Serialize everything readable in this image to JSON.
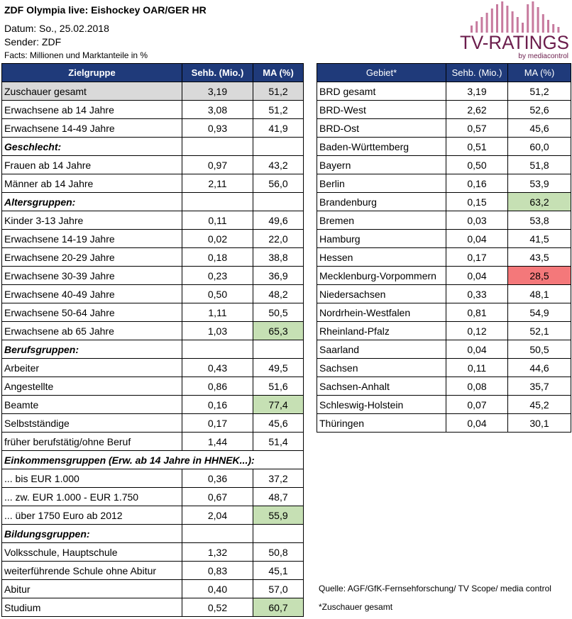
{
  "header": {
    "title": "ZDF Olympia live: Eishockey OAR/GER HR",
    "datum": "Datum: So., 25.02.2018",
    "sender": "Sender: ZDF",
    "facts": "Facts: Millionen und Marktanteile in %"
  },
  "logo": {
    "brand": "TV-RATINGS",
    "sub": "by mediacontrol",
    "color": "#6b1d4c",
    "bar_color": "#c77a9e"
  },
  "colors": {
    "header_bg": "#1f3a7a",
    "total_bg": "#d9d9d9",
    "green": "#c6e0b4",
    "red": "#f4787a"
  },
  "left_table": {
    "columns": [
      "Zielgruppe",
      "Sehb. (Mio.)",
      "MA (%)"
    ],
    "rows": [
      {
        "label": "Zuschauer gesamt",
        "sehb": "3,19",
        "ma": "51,2",
        "kind": "total"
      },
      {
        "label": "Erwachsene ab 14 Jahre",
        "sehb": "3,08",
        "ma": "51,2"
      },
      {
        "label": "Erwachsene 14-49 Jahre",
        "sehb": "0,93",
        "ma": "41,9"
      },
      {
        "label": "Geschlecht:",
        "sehb": "",
        "ma": "",
        "kind": "section"
      },
      {
        "label": "Frauen ab 14 Jahre",
        "sehb": "0,97",
        "ma": "43,2"
      },
      {
        "label": "Männer ab 14 Jahre",
        "sehb": "2,11",
        "ma": "56,0"
      },
      {
        "label": "Altersgruppen:",
        "sehb": "",
        "ma": "",
        "kind": "section"
      },
      {
        "label": "Kinder 3-13 Jahre",
        "sehb": "0,11",
        "ma": "49,6"
      },
      {
        "label": "Erwachsene 14-19 Jahre",
        "sehb": "0,02",
        "ma": "22,0"
      },
      {
        "label": "Erwachsene 20-29 Jahre",
        "sehb": "0,18",
        "ma": "38,8"
      },
      {
        "label": "Erwachsene 30-39 Jahre",
        "sehb": "0,23",
        "ma": "36,9"
      },
      {
        "label": "Erwachsene 40-49 Jahre",
        "sehb": "0,50",
        "ma": "48,2"
      },
      {
        "label": "Erwachsene 50-64 Jahre",
        "sehb": "1,11",
        "ma": "50,5"
      },
      {
        "label": "Erwachsene ab 65 Jahre",
        "sehb": "1,03",
        "ma": "65,3",
        "highlight": "green"
      },
      {
        "label": "Berufsgruppen:",
        "sehb": "",
        "ma": "",
        "kind": "section"
      },
      {
        "label": "Arbeiter",
        "sehb": "0,43",
        "ma": "49,5"
      },
      {
        "label": "Angestellte",
        "sehb": "0,86",
        "ma": "51,6"
      },
      {
        "label": "Beamte",
        "sehb": "0,16",
        "ma": "77,4",
        "highlight": "green"
      },
      {
        "label": "Selbstständige",
        "sehb": "0,17",
        "ma": "45,6"
      },
      {
        "label": "früher berufstätig/ohne Beruf",
        "sehb": "1,44",
        "ma": "51,4"
      },
      {
        "label": "Einkommensgruppen (Erw. ab 14 Jahre in HHNEK...):",
        "sehb": "",
        "ma": "",
        "kind": "section",
        "span": true
      },
      {
        "label": "... bis EUR 1.000",
        "sehb": "0,36",
        "ma": "37,2"
      },
      {
        "label": "... zw. EUR 1.000 - EUR 1.750",
        "sehb": "0,67",
        "ma": "48,7"
      },
      {
        "label": "... über 1750 Euro ab 2012",
        "sehb": "2,04",
        "ma": "55,9",
        "highlight": "green"
      },
      {
        "label": "Bildungsgruppen:",
        "sehb": "",
        "ma": "",
        "kind": "section"
      },
      {
        "label": "Volksschule, Hauptschule",
        "sehb": "1,32",
        "ma": "50,8"
      },
      {
        "label": "weiterführende  Schule ohne Abitur",
        "sehb": "0,83",
        "ma": "45,1"
      },
      {
        "label": "Abitur",
        "sehb": "0,40",
        "ma": "57,0"
      },
      {
        "label": "Studium",
        "sehb": "0,52",
        "ma": "60,7",
        "highlight": "green"
      }
    ]
  },
  "right_table": {
    "columns": [
      "Gebiet*",
      "Sehb. (Mio.)",
      "MA (%)"
    ],
    "rows": [
      {
        "label": "BRD gesamt",
        "sehb": "3,19",
        "ma": "51,2"
      },
      {
        "label": "BRD-West",
        "sehb": "2,62",
        "ma": "52,6"
      },
      {
        "label": "BRD-Ost",
        "sehb": "0,57",
        "ma": "45,6"
      },
      {
        "label": "Baden-Württemberg",
        "sehb": "0,51",
        "ma": "60,0"
      },
      {
        "label": "Bayern",
        "sehb": "0,50",
        "ma": "51,8"
      },
      {
        "label": "Berlin",
        "sehb": "0,16",
        "ma": "53,9"
      },
      {
        "label": "Brandenburg",
        "sehb": "0,15",
        "ma": "63,2",
        "highlight": "green"
      },
      {
        "label": "Bremen",
        "sehb": "0,03",
        "ma": "53,8"
      },
      {
        "label": "Hamburg",
        "sehb": "0,04",
        "ma": "41,5"
      },
      {
        "label": "Hessen",
        "sehb": "0,17",
        "ma": "43,5"
      },
      {
        "label": "Mecklenburg-Vorpommern",
        "sehb": "0,04",
        "ma": "28,5",
        "highlight": "red"
      },
      {
        "label": "Niedersachsen",
        "sehb": "0,33",
        "ma": "48,1"
      },
      {
        "label": "Nordrhein-Westfalen",
        "sehb": "0,81",
        "ma": "54,9"
      },
      {
        "label": "Rheinland-Pfalz",
        "sehb": "0,12",
        "ma": "52,1"
      },
      {
        "label": "Saarland",
        "sehb": "0,04",
        "ma": "50,5"
      },
      {
        "label": "Sachsen",
        "sehb": "0,11",
        "ma": "44,6"
      },
      {
        "label": "Sachsen-Anhalt",
        "sehb": "0,08",
        "ma": "35,7"
      },
      {
        "label": "Schleswig-Holstein",
        "sehb": "0,07",
        "ma": "45,2"
      },
      {
        "label": "Thüringen",
        "sehb": "0,04",
        "ma": "30,1"
      }
    ]
  },
  "footer": {
    "source": "Quelle: AGF/GfK-Fernsehforschung/ TV Scope/ media control",
    "note": "*Zuschauer gesamt"
  }
}
